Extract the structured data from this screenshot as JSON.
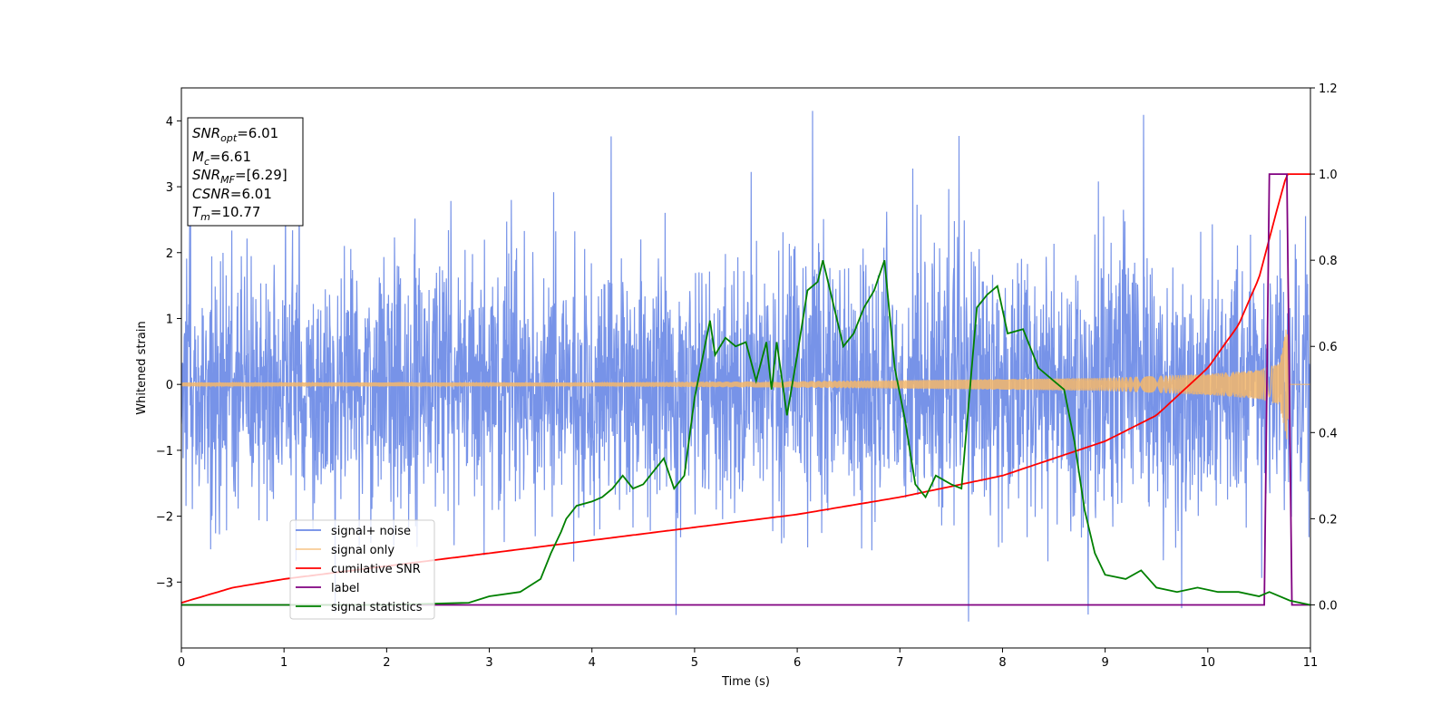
{
  "chart_data": {
    "type": "line",
    "title": "",
    "xlabel": "Time (s)",
    "ylabel": "Whitened strain",
    "xlim": [
      0,
      11
    ],
    "ylim_left": [
      -4,
      4.5
    ],
    "ylim_right": [
      -0.1,
      1.2
    ],
    "xticks": [
      "0",
      "1",
      "2",
      "3",
      "4",
      "5",
      "6",
      "7",
      "8",
      "9",
      "10",
      "11"
    ],
    "yticks_left": [
      "−3",
      "−2",
      "−1",
      "0",
      "1",
      "2",
      "3",
      "4"
    ],
    "yticks_right": [
      "0.0",
      "0.2",
      "0.4",
      "0.6",
      "0.8",
      "1.0",
      "1.2"
    ],
    "grid": false,
    "legend_position": "lower-left",
    "annotation": {
      "snr_opt": {
        "var": "SNR",
        "sub": "opt",
        "text": "=6.01"
      },
      "mc": {
        "var": "M",
        "sub": "c",
        "text": "=6.61"
      },
      "snr_mf": {
        "var": "SNR",
        "sub": "MF",
        "text": "=[6.29]"
      },
      "csnr": {
        "var": "CSNR",
        "text": "=6.01"
      },
      "tm": {
        "var": "T",
        "sub": "m",
        "text": "=10.77"
      }
    },
    "series": [
      {
        "name": "signal+ noise",
        "color": "#6b8ae6",
        "axis": "left",
        "style": "whitened noise, approx. 1 sigma, peaks to about +4.15 at t≈6.15 and −3.6 at t≈7.67",
        "amplitude_sigma": 1.0
      },
      {
        "name": "signal only",
        "color": "#f5b76a",
        "axis": "left",
        "style": "chirp with growing amplitude",
        "envelope": {
          "x": [
            0,
            4,
            6,
            8,
            9,
            10,
            10.5,
            10.7,
            10.77,
            10.8,
            11
          ],
          "y": [
            0.03,
            0.03,
            0.05,
            0.08,
            0.1,
            0.16,
            0.22,
            0.32,
            0.9,
            0.0,
            0.0
          ]
        }
      },
      {
        "name": "cumilative SNR",
        "color": "#ff0000",
        "axis": "right",
        "x": [
          0,
          0.5,
          1,
          2,
          3,
          4,
          5,
          6,
          7,
          8,
          9,
          9.5,
          10,
          10.3,
          10.5,
          10.7,
          10.77,
          11
        ],
        "y": [
          0.005,
          0.04,
          0.06,
          0.09,
          0.12,
          0.15,
          0.18,
          0.21,
          0.25,
          0.3,
          0.38,
          0.44,
          0.55,
          0.65,
          0.76,
          0.94,
          1.0,
          1.0
        ]
      },
      {
        "name": "label",
        "color": "#800080",
        "axis": "right",
        "x": [
          0,
          10.55,
          10.6,
          10.72,
          10.77,
          10.82,
          11
        ],
        "y": [
          0.0,
          0.0,
          1.0,
          1.0,
          1.0,
          0.0,
          0.0
        ]
      },
      {
        "name": "signal statistics",
        "color": "#008000",
        "axis": "right",
        "x": [
          0,
          1,
          2,
          2.8,
          3.0,
          3.3,
          3.5,
          3.6,
          3.7,
          3.75,
          3.85,
          4.0,
          4.1,
          4.2,
          4.3,
          4.4,
          4.5,
          4.6,
          4.7,
          4.8,
          4.9,
          5.0,
          5.1,
          5.15,
          5.2,
          5.3,
          5.4,
          5.5,
          5.6,
          5.7,
          5.75,
          5.8,
          5.9,
          6.0,
          6.1,
          6.2,
          6.25,
          6.35,
          6.45,
          6.55,
          6.65,
          6.75,
          6.85,
          6.95,
          7.05,
          7.15,
          7.25,
          7.35,
          7.5,
          7.6,
          7.75,
          7.85,
          7.95,
          8.05,
          8.2,
          8.35,
          8.5,
          8.6,
          8.7,
          8.8,
          8.9,
          9.0,
          9.2,
          9.35,
          9.5,
          9.7,
          9.9,
          10.1,
          10.3,
          10.5,
          10.6,
          10.8,
          11
        ],
        "y": [
          0.0,
          0.0,
          0.0,
          0.005,
          0.02,
          0.03,
          0.06,
          0.12,
          0.17,
          0.2,
          0.23,
          0.24,
          0.25,
          0.27,
          0.3,
          0.27,
          0.28,
          0.31,
          0.34,
          0.27,
          0.3,
          0.48,
          0.6,
          0.66,
          0.58,
          0.62,
          0.6,
          0.61,
          0.52,
          0.61,
          0.5,
          0.61,
          0.44,
          0.58,
          0.73,
          0.75,
          0.8,
          0.7,
          0.6,
          0.63,
          0.69,
          0.73,
          0.8,
          0.55,
          0.43,
          0.28,
          0.25,
          0.3,
          0.28,
          0.27,
          0.69,
          0.72,
          0.74,
          0.63,
          0.64,
          0.55,
          0.52,
          0.5,
          0.38,
          0.22,
          0.12,
          0.07,
          0.06,
          0.08,
          0.04,
          0.03,
          0.04,
          0.03,
          0.03,
          0.02,
          0.03,
          0.01,
          0.0
        ]
      }
    ]
  }
}
